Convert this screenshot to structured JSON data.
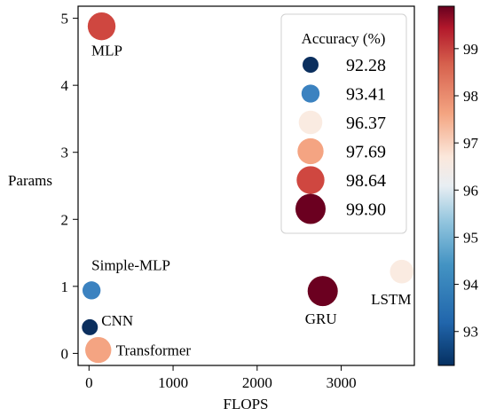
{
  "chart_data": {
    "type": "scatter",
    "xlabel": "FLOPS",
    "ylabel": "Params",
    "xlim": [
      -130,
      3870
    ],
    "ylim": [
      -0.18,
      5.18
    ],
    "xticks": [
      0,
      1000,
      2000,
      3000
    ],
    "yticks": [
      0,
      1,
      2,
      3,
      4,
      5
    ],
    "grid": false,
    "points": [
      {
        "name": "MLP",
        "x": 150,
        "y": 4.88,
        "accuracy": 98.64
      },
      {
        "name": "Simple-MLP",
        "x": 30,
        "y": 0.94,
        "accuracy": 93.41
      },
      {
        "name": "CNN",
        "x": 10,
        "y": 0.39,
        "accuracy": 92.28
      },
      {
        "name": "Transformer",
        "x": 110,
        "y": 0.05,
        "accuracy": 97.69
      },
      {
        "name": "GRU",
        "x": 2780,
        "y": 0.93,
        "accuracy": 99.9
      },
      {
        "name": "LSTM",
        "x": 3720,
        "y": 1.22,
        "accuracy": 96.37
      }
    ],
    "legend": {
      "title": "Accuracy (%)",
      "placement": "top-right",
      "entries": [
        "92.28",
        "93.41",
        "96.37",
        "97.69",
        "98.64",
        "99.90"
      ],
      "values": [
        92.28,
        93.41,
        96.37,
        97.69,
        98.64,
        99.9
      ]
    },
    "colorbar": {
      "range": [
        92.28,
        99.9
      ],
      "ticks": [
        93,
        94,
        95,
        96,
        97,
        98,
        99
      ],
      "colormap": "RdBu_r"
    },
    "colors": {
      "92.28": "#0b2f5e",
      "93.41": "#3b82c0",
      "96.37": "#faebe1",
      "97.69": "#f4a482",
      "98.64": "#cf4740",
      "99.90": "#6b0020"
    }
  }
}
